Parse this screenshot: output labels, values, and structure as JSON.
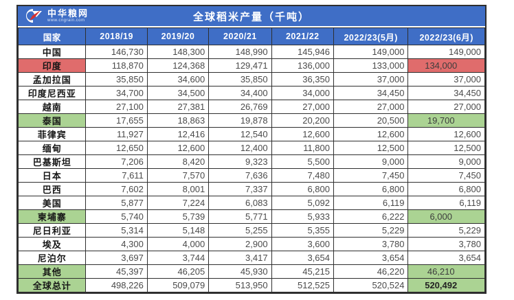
{
  "brand": {
    "name": "中华粮网",
    "website": "www.cngrain.com",
    "logo_icon": "cngrain-g-arrow-logo"
  },
  "title": "全球稻米产量（千吨）",
  "colors": {
    "header_blue": "#3f6ec6",
    "highlight_red": "#e06c6c",
    "highlight_green": "#abd393",
    "border": "#2e2e2e",
    "number_text": "#4a4a4a"
  },
  "chart_data": {
    "type": "table",
    "title": "全球稻米产量（千吨）",
    "columns": [
      "国家",
      "2018/19",
      "2019/20",
      "2020/21",
      "2021/22",
      "2022/23(5月)",
      "2022/23(6月)"
    ],
    "rows": [
      {
        "country": "中国",
        "values": [
          "146,730",
          "148,300",
          "148,990",
          "145,946",
          "149,000",
          "149,000"
        ],
        "highlight": "none"
      },
      {
        "country": "印度",
        "values": [
          "118,870",
          "124,368",
          "129,471",
          "136,000",
          "133,000",
          "134,000"
        ],
        "highlight": "red"
      },
      {
        "country": "孟加拉国",
        "values": [
          "35,850",
          "34,600",
          "35,850",
          "36,350",
          "37,000",
          "37,000"
        ],
        "highlight": "none"
      },
      {
        "country": "印度尼西亚",
        "values": [
          "34,700",
          "34,500",
          "34,400",
          "34,000",
          "34,450",
          "34,450"
        ],
        "highlight": "none"
      },
      {
        "country": "越南",
        "values": [
          "27,100",
          "27,381",
          "26,769",
          "27,000",
          "27,000",
          "27,000"
        ],
        "highlight": "none"
      },
      {
        "country": "泰国",
        "values": [
          "17,655",
          "18,863",
          "19,878",
          "20,200",
          "20,500",
          "19,700"
        ],
        "highlight": "green"
      },
      {
        "country": "菲律宾",
        "values": [
          "11,927",
          "12,416",
          "12,540",
          "12,600",
          "12,600",
          "12,600"
        ],
        "highlight": "none"
      },
      {
        "country": "缅甸",
        "values": [
          "12,650",
          "12,600",
          "12,400",
          "11,800",
          "12,500",
          "12,500"
        ],
        "highlight": "none"
      },
      {
        "country": "巴基斯坦",
        "values": [
          "7,206",
          "8,420",
          "9,323",
          "5,500",
          "9,000",
          "9,000"
        ],
        "highlight": "none"
      },
      {
        "country": "日本",
        "values": [
          "7,611",
          "7,570",
          "7,636",
          "7,480",
          "7,450",
          "7,450"
        ],
        "highlight": "none"
      },
      {
        "country": "巴西",
        "values": [
          "7,602",
          "8,001",
          "7,337",
          "6,800",
          "6,800",
          "6,800"
        ],
        "highlight": "none"
      },
      {
        "country": "美国",
        "values": [
          "5,877",
          "7,224",
          "6,083",
          "5,092",
          "6,119",
          "6,119"
        ],
        "highlight": "none"
      },
      {
        "country": "柬埔寨",
        "values": [
          "5,740",
          "5,739",
          "5,771",
          "5,933",
          "6,222",
          "6,000"
        ],
        "highlight": "green"
      },
      {
        "country": "尼日利亚",
        "values": [
          "5,314",
          "5,148",
          "5,255",
          "5,355",
          "5,229",
          "5,229"
        ],
        "highlight": "none"
      },
      {
        "country": "埃及",
        "values": [
          "4,300",
          "4,000",
          "2,900",
          "3,600",
          "3,780",
          "3,780"
        ],
        "highlight": "none"
      },
      {
        "country": "尼泊尔",
        "values": [
          "3,697",
          "3,744",
          "3,417",
          "3,654",
          "3,654",
          "3,654"
        ],
        "highlight": "none"
      },
      {
        "country": "其他",
        "values": [
          "45,397",
          "46,205",
          "45,930",
          "45,215",
          "46,220",
          "46,210"
        ],
        "highlight": "green"
      },
      {
        "country": "全球总计",
        "values": [
          "498,226",
          "509,079",
          "513,950",
          "512,525",
          "520,524",
          "520,492"
        ],
        "highlight": "green",
        "total": true
      }
    ]
  }
}
